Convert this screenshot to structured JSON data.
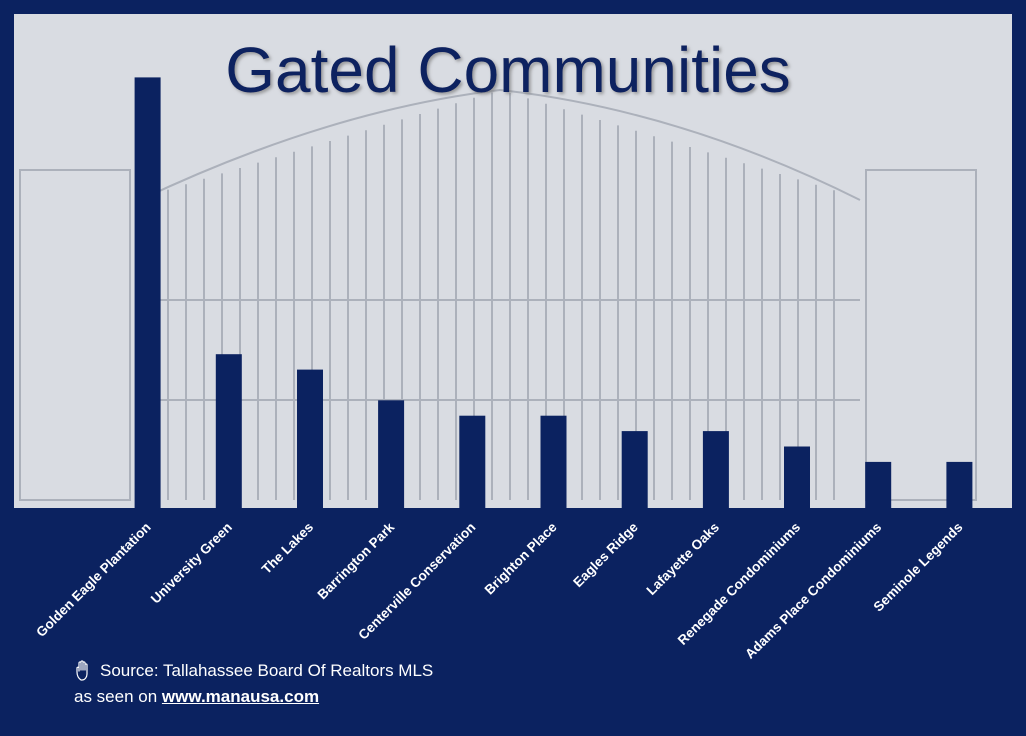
{
  "colors": {
    "background": "#0b2260",
    "bar": "#0b2260",
    "plot_fill": "#d9dce2",
    "text": "#ffffff"
  },
  "chart_data": {
    "type": "bar",
    "title": "Gated Communities",
    "categories": [
      "Golden Eagle Plantation",
      "University Green",
      "The Lakes",
      "Barrington Park",
      "Centerville Conservation",
      "Brighton Place",
      "Eagles Ridge",
      "Lafayette Oaks",
      "Renegade Condominiums",
      "Adams Place Condominiums",
      "Seminole Legends"
    ],
    "values": [
      28,
      10,
      9,
      7,
      6,
      6,
      5,
      5,
      4,
      3,
      3
    ],
    "ylim": [
      0,
      29
    ],
    "grid": false,
    "legend": "none"
  },
  "footer": {
    "source_text": "Source: Tallahassee Board Of Realtors MLS",
    "seen_prefix": "as seen on",
    "site": "www.manausa.com",
    "source_icon": "hand-pointing-icon"
  }
}
